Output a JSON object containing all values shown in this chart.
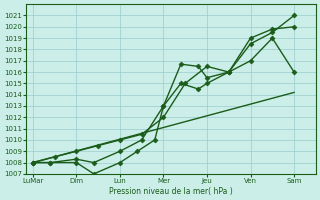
{
  "background_color": "#cceee8",
  "grid_color": "#99cccc",
  "line_color": "#1a5c1a",
  "marker": "D",
  "markersize": 2.5,
  "linewidth": 1.0,
  "xlabel": "Pression niveau de la mer( hPa )",
  "ylim": [
    1007,
    1022
  ],
  "yticks": [
    1007,
    1008,
    1009,
    1010,
    1011,
    1012,
    1013,
    1014,
    1015,
    1016,
    1017,
    1018,
    1019,
    1020,
    1021
  ],
  "xtick_labels": [
    "LuMar",
    "Dim",
    "Lun",
    "Mer",
    "Jeu",
    "Ven",
    "Sam"
  ],
  "xtick_positions": [
    0,
    1,
    2,
    3,
    4,
    5,
    6
  ],
  "xlim": [
    -0.15,
    6.5
  ],
  "series": [
    {
      "x": [
        0,
        0.4,
        1.0,
        1.4,
        2.0,
        2.4,
        2.8,
        3.0,
        3.4,
        3.8,
        4.0,
        4.5,
        5.0,
        5.5,
        6.0
      ],
      "y": [
        1008,
        1008,
        1008,
        1007,
        1008,
        1009,
        1010,
        1013,
        1015,
        1014.5,
        1015,
        1016,
        1017,
        1019,
        1016
      ],
      "has_marker": true
    },
    {
      "x": [
        0,
        0.4,
        1.0,
        1.4,
        2.0,
        2.5,
        3.0,
        3.4,
        3.8,
        4.0,
        4.5,
        5.0,
        5.5,
        6.0
      ],
      "y": [
        1008,
        1008,
        1008.3,
        1008,
        1009,
        1010,
        1013,
        1016.7,
        1016.5,
        1015.5,
        1016,
        1018.5,
        1019.5,
        1021
      ],
      "has_marker": true
    },
    {
      "x": [
        0,
        0.5,
        1.0,
        1.5,
        2.0,
        2.5,
        3.0,
        3.5,
        4.0,
        4.5,
        5.0,
        5.5,
        6.0
      ],
      "y": [
        1008,
        1008.5,
        1009,
        1009.5,
        1010,
        1010.5,
        1012,
        1015,
        1016.5,
        1016,
        1019,
        1019.8,
        1020
      ],
      "has_marker": true
    },
    {
      "x": [
        0,
        6.0
      ],
      "y": [
        1008.0,
        1014.2
      ],
      "has_marker": false
    }
  ]
}
